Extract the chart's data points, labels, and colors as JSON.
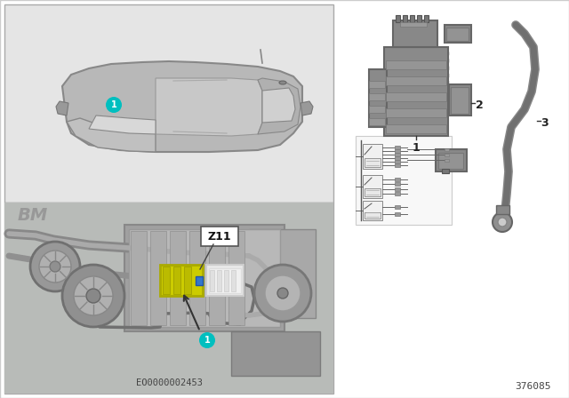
{
  "bg_color": "#ffffff",
  "panel_top_bg": "#e8e8e8",
  "panel_bot_bg": "#c8c8c8",
  "car_body_color": "#b0b0b0",
  "car_dark": "#888888",
  "car_light": "#d0d0d0",
  "engine_dark": "#909090",
  "engine_mid": "#a8a8a8",
  "engine_light": "#c0c0c0",
  "cyan": "#00BFBF",
  "yellow": "#d4d400",
  "white": "#ffffff",
  "dark_text": "#222222",
  "part_color": "#888888",
  "part_dark": "#666666",
  "part_light": "#aaaaaa",
  "bottom_left_text": "EO0000002453",
  "bottom_right_text": "376085",
  "zone_label": "Z11",
  "label1": "1",
  "label2": "2",
  "label3": "3"
}
